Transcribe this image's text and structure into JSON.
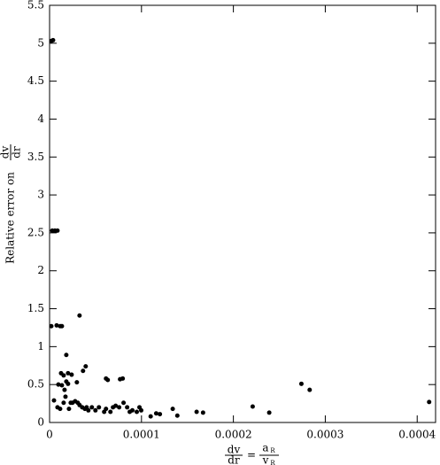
{
  "chart_data": {
    "type": "scatter",
    "xlabel": {
      "lhs": [
        "dv",
        "dr"
      ],
      "eq": "=",
      "rhs": [
        {
          "text": "a",
          "sub": "R"
        },
        {
          "text": "v",
          "sub": "R"
        }
      ]
    },
    "ylabel": {
      "text": "Relative error on",
      "fraction": [
        "dv",
        "dr"
      ]
    },
    "color": "#000000",
    "xlim": [
      0,
      0.00042
    ],
    "ylim": [
      0,
      5.5
    ],
    "xticks": [
      0,
      0.0001,
      0.0002,
      0.0003,
      0.0004
    ],
    "yticks": [
      0,
      0.5,
      1,
      1.5,
      2,
      2.5,
      3,
      3.5,
      4,
      4.5,
      5,
      5.5
    ],
    "x": [
      1.9e-06,
      3.8e-06,
      2.9e-06,
      5.8e-06,
      8.6e-06,
      1.9e-06,
      7.7e-06,
      1.15e-05,
      1.34e-05,
      3.26e-05,
      1.82e-05,
      2.01e-05,
      1.53e-05,
      1.25e-05,
      3.93e-05,
      3.64e-05,
      2.4e-05,
      4.8e-06,
      9.6e-06,
      1.34e-05,
      1.63e-05,
      1.82e-05,
      2.01e-05,
      2.97e-05,
      6.14e-05,
      6.33e-05,
      7.67e-05,
      7.96e-05,
      8.6e-06,
      1.15e-05,
      1.53e-05,
      1.73e-05,
      2.11e-05,
      2.3e-05,
      2.49e-05,
      2.78e-05,
      3.07e-05,
      3.26e-05,
      3.55e-05,
      3.84e-05,
      4.03e-05,
      4.22e-05,
      4.6e-05,
      4.99e-05,
      5.37e-05,
      5.94e-05,
      6.14e-05,
      6.62e-05,
      6.9e-05,
      7.19e-05,
      7.57e-05,
      8.05e-05,
      8.44e-05,
      8.72e-05,
      9.01e-05,
      9.49e-05,
      9.78e-05,
      9.97e-05,
      0.00011,
      0.000116,
      0.00012,
      0.000134,
      0.000139,
      0.00016,
      0.000167,
      0.000221,
      0.000239,
      0.000274,
      0.000283,
      0.000413
    ],
    "values": [
      5.03,
      5.04,
      2.53,
      2.53,
      2.53,
      1.27,
      1.28,
      1.27,
      1.27,
      1.41,
      0.89,
      0.65,
      0.62,
      0.65,
      0.74,
      0.68,
      0.63,
      0.29,
      0.5,
      0.49,
      0.43,
      0.54,
      0.51,
      0.53,
      0.58,
      0.56,
      0.57,
      0.58,
      0.2,
      0.18,
      0.26,
      0.34,
      0.18,
      0.26,
      0.26,
      0.28,
      0.26,
      0.23,
      0.2,
      0.18,
      0.2,
      0.16,
      0.2,
      0.16,
      0.2,
      0.14,
      0.18,
      0.14,
      0.2,
      0.22,
      0.2,
      0.26,
      0.2,
      0.14,
      0.16,
      0.14,
      0.2,
      0.16,
      0.08,
      0.12,
      0.11,
      0.18,
      0.09,
      0.14,
      0.13,
      0.21,
      0.13,
      0.51,
      0.43,
      0.27
    ]
  }
}
